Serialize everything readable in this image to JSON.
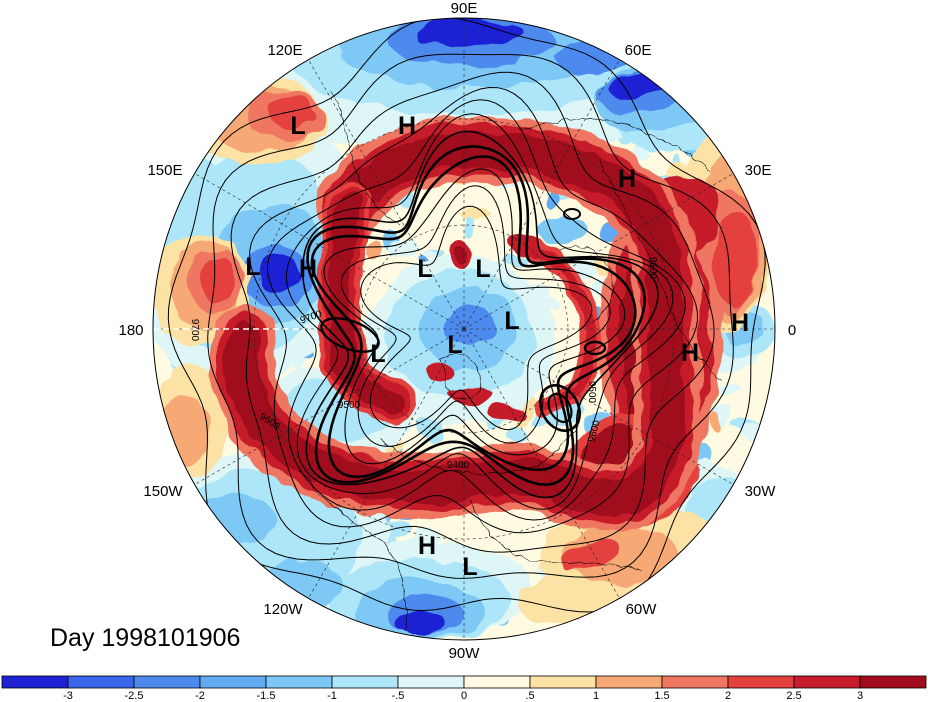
{
  "title": "Day 1998101906",
  "map": {
    "longitude_labels": [
      "90E",
      "60E",
      "30E",
      "0",
      "30W",
      "60W",
      "90W",
      "120W",
      "150W",
      "180",
      "150E",
      "120E"
    ],
    "pressure_centers": [
      "L",
      "H",
      "H",
      "L",
      "H",
      "L",
      "L",
      "L",
      "H",
      "H",
      "L",
      "L",
      "H",
      "L"
    ],
    "contour_labels": [
      "9700",
      "9700",
      "9500",
      "9600",
      "9600",
      "9500",
      "9600",
      "9400"
    ]
  },
  "colorbar": {
    "labels": [
      "-3",
      "-2.5",
      "-2",
      "-1.5",
      "-1",
      "-.5",
      "0",
      ".5",
      "1",
      "1.5",
      "2",
      "2.5",
      "3"
    ],
    "colors": [
      "#1e22d4",
      "#3a66ea",
      "#4e8aee",
      "#62aaf2",
      "#7ec8f6",
      "#ace6f8",
      "#def6f6",
      "#fefbe2",
      "#fde2a6",
      "#f6a874",
      "#ef7660",
      "#e4403e",
      "#c61c2c",
      "#a00c1e"
    ]
  }
}
